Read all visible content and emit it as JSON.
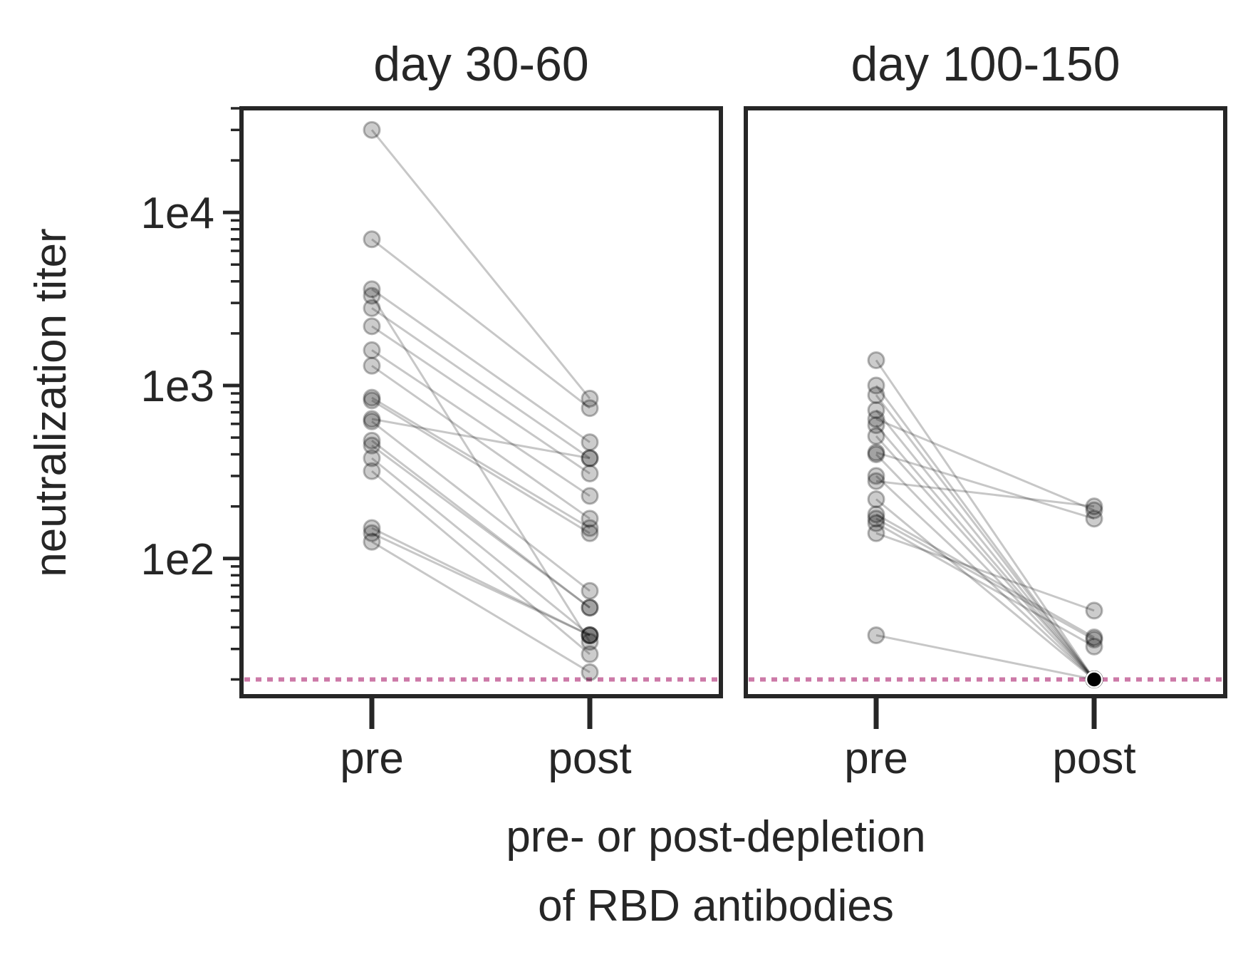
{
  "chart_data": {
    "type": "scatter",
    "ylabel": "neutralization titer",
    "xlabel_lines": [
      "pre- or post-depletion",
      "of RBD antibodies"
    ],
    "yscale": "log",
    "ylim": [
      16,
      40000
    ],
    "yticks": [
      {
        "value": 100,
        "label": "1e2"
      },
      {
        "value": 1000,
        "label": "1e3"
      },
      {
        "value": 10000,
        "label": "1e4"
      }
    ],
    "categories": [
      "pre",
      "post"
    ],
    "limit_of_detection": 20,
    "limit_color": "#cc79a7",
    "point_color": "#000000",
    "panels": [
      {
        "title": "day 30-60",
        "pairs": [
          [
            30000,
            840
          ],
          [
            7000,
            740
          ],
          [
            3600,
            470
          ],
          [
            3300,
            33
          ],
          [
            2800,
            380
          ],
          [
            2200,
            310
          ],
          [
            1600,
            230
          ],
          [
            1300,
            170
          ],
          [
            850,
            150
          ],
          [
            820,
            140
          ],
          [
            640,
            380
          ],
          [
            620,
            65
          ],
          [
            480,
            52
          ],
          [
            450,
            52
          ],
          [
            380,
            36
          ],
          [
            320,
            28
          ],
          [
            150,
            36
          ],
          [
            140,
            36
          ],
          [
            125,
            22
          ]
        ]
      },
      {
        "title": "day 100-150",
        "pairs": [
          [
            1400,
            20
          ],
          [
            1000,
            20
          ],
          [
            880,
            20
          ],
          [
            720,
            20
          ],
          [
            640,
            190
          ],
          [
            590,
            20
          ],
          [
            510,
            20
          ],
          [
            410,
            170
          ],
          [
            400,
            20
          ],
          [
            300,
            20
          ],
          [
            280,
            200
          ],
          [
            220,
            20
          ],
          [
            180,
            35
          ],
          [
            170,
            34
          ],
          [
            160,
            31
          ],
          [
            140,
            50
          ],
          [
            36,
            20
          ]
        ],
        "highlight_point": {
          "category": "post",
          "value": 20,
          "fill": "#000000"
        }
      }
    ]
  }
}
